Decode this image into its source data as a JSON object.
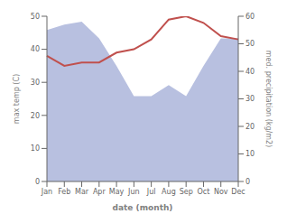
{
  "chart_data": {
    "type": "line",
    "categories": [
      "Jan",
      "Feb",
      "Mar",
      "Apr",
      "May",
      "Jun",
      "Jul",
      "Aug",
      "Sep",
      "Oct",
      "Nov",
      "Dec"
    ],
    "xlabel": "date (month)",
    "ylabel": "max temp (C)",
    "y2label": "med. precipitation (kg/m2)",
    "ylim": [
      0,
      50
    ],
    "yticks": [
      0,
      10,
      20,
      30,
      40,
      50
    ],
    "y2lim": [
      0,
      60
    ],
    "y2ticks": [
      0,
      10,
      20,
      30,
      40,
      50,
      60
    ],
    "grid": false,
    "series": [
      {
        "type": "area",
        "axis": "y2",
        "color": "#b8c0e0",
        "values": [
          55,
          57,
          58,
          52,
          42,
          31,
          31,
          35,
          31,
          42,
          52,
          52
        ]
      },
      {
        "type": "line",
        "color": "#c0504d",
        "values": [
          38,
          35,
          36,
          36,
          39,
          40,
          43,
          49,
          50,
          48,
          44,
          43
        ]
      }
    ]
  }
}
